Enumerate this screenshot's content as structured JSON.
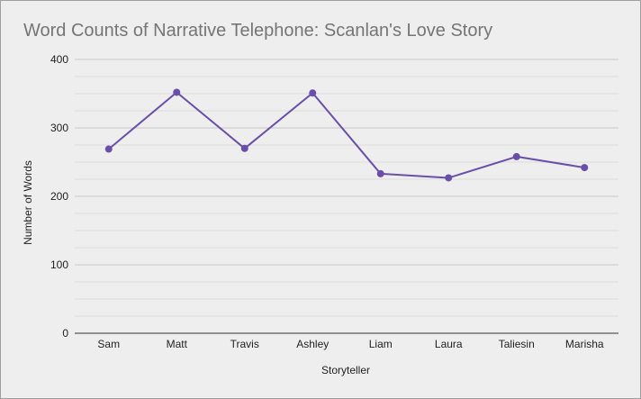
{
  "chart_data": {
    "type": "line",
    "title": "Word Counts of Narrative Telephone: Scanlan's Love Story",
    "xlabel": "Storyteller",
    "ylabel": "Number of Words",
    "categories": [
      "Sam",
      "Matt",
      "Travis",
      "Ashley",
      "Liam",
      "Laura",
      "Taliesin",
      "Marisha"
    ],
    "series": [
      {
        "values": [
          269,
          352,
          270,
          351,
          233,
          227,
          258,
          242
        ],
        "color": "#6a4fa8"
      }
    ],
    "ylim": [
      0,
      400
    ],
    "yticks": [
      "0",
      "100",
      "200",
      "300",
      "400"
    ],
    "grid": true,
    "legend": "none"
  }
}
